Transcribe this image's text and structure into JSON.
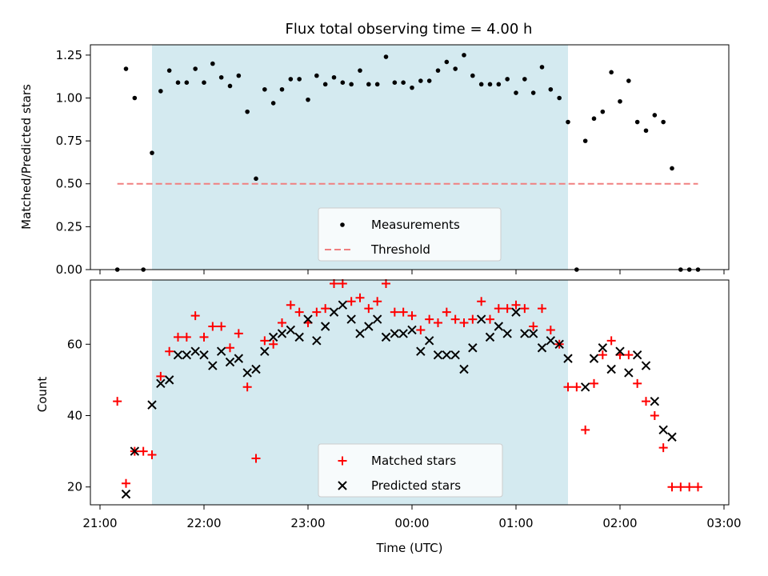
{
  "chart_data": [
    {
      "type": "scatter",
      "title": "Flux total observing time = 4.00 h",
      "xlabel": "",
      "ylabel": "Matched/Predicted stars",
      "ylim": [
        0,
        1.31
      ],
      "yticks": [
        "0.00",
        "0.25",
        "0.50",
        "0.75",
        "1.00",
        "1.25"
      ],
      "highlight_span": {
        "from": "21:30",
        "to": "01:30",
        "color": "#d4eaf0"
      },
      "threshold": {
        "name": "Threshold",
        "value": 0.5,
        "from": "21:10",
        "to": "02:45",
        "color": "#f08080"
      },
      "legend": {
        "placement": "lower center"
      },
      "series": [
        {
          "name": "Measurements",
          "color": "#000000",
          "points": [
            [
              "21:10",
              0.0
            ],
            [
              "21:15",
              1.17
            ],
            [
              "21:20",
              1.0
            ],
            [
              "21:25",
              0.0
            ],
            [
              "21:30",
              0.68
            ],
            [
              "21:35",
              1.04
            ],
            [
              "21:40",
              1.16
            ],
            [
              "21:45",
              1.09
            ],
            [
              "21:50",
              1.09
            ],
            [
              "21:55",
              1.17
            ],
            [
              "22:00",
              1.09
            ],
            [
              "22:05",
              1.2
            ],
            [
              "22:10",
              1.12
            ],
            [
              "22:15",
              1.07
            ],
            [
              "22:20",
              1.13
            ],
            [
              "22:25",
              0.92
            ],
            [
              "22:30",
              0.53
            ],
            [
              "22:35",
              1.05
            ],
            [
              "22:40",
              0.97
            ],
            [
              "22:45",
              1.05
            ],
            [
              "22:50",
              1.11
            ],
            [
              "22:55",
              1.11
            ],
            [
              "23:00",
              0.99
            ],
            [
              "23:05",
              1.13
            ],
            [
              "23:10",
              1.08
            ],
            [
              "23:15",
              1.12
            ],
            [
              "23:20",
              1.09
            ],
            [
              "23:25",
              1.08
            ],
            [
              "23:30",
              1.16
            ],
            [
              "23:35",
              1.08
            ],
            [
              "23:40",
              1.08
            ],
            [
              "23:45",
              1.24
            ],
            [
              "23:50",
              1.09
            ],
            [
              "23:55",
              1.09
            ],
            [
              "00:00",
              1.06
            ],
            [
              "00:05",
              1.1
            ],
            [
              "00:10",
              1.1
            ],
            [
              "00:15",
              1.16
            ],
            [
              "00:20",
              1.21
            ],
            [
              "00:25",
              1.17
            ],
            [
              "00:30",
              1.25
            ],
            [
              "00:35",
              1.13
            ],
            [
              "00:40",
              1.08
            ],
            [
              "00:45",
              1.08
            ],
            [
              "00:50",
              1.08
            ],
            [
              "00:55",
              1.11
            ],
            [
              "01:00",
              1.03
            ],
            [
              "01:05",
              1.11
            ],
            [
              "01:10",
              1.03
            ],
            [
              "01:15",
              1.18
            ],
            [
              "01:20",
              1.05
            ],
            [
              "01:25",
              1.0
            ],
            [
              "01:30",
              0.86
            ],
            [
              "01:35",
              0.0
            ],
            [
              "01:40",
              0.75
            ],
            [
              "01:45",
              0.88
            ],
            [
              "01:50",
              0.92
            ],
            [
              "01:55",
              1.15
            ],
            [
              "02:00",
              0.98
            ],
            [
              "02:05",
              1.1
            ],
            [
              "02:10",
              0.86
            ],
            [
              "02:15",
              0.81
            ],
            [
              "02:20",
              0.9
            ],
            [
              "02:25",
              0.86
            ],
            [
              "02:30",
              0.59
            ],
            [
              "02:35",
              0.0
            ],
            [
              "02:40",
              0.0
            ],
            [
              "02:45",
              0.0
            ]
          ]
        }
      ]
    },
    {
      "type": "scatter",
      "title": "",
      "xlabel": "Time (UTC)",
      "ylabel": "Count",
      "ylim": [
        15,
        78
      ],
      "yticks": [
        "20",
        "40",
        "60"
      ],
      "xlim": [
        "20:55",
        "03:00"
      ],
      "xticks": [
        "21:00",
        "22:00",
        "23:00",
        "00:00",
        "01:00",
        "02:00",
        "03:00"
      ],
      "highlight_span": {
        "from": "21:30",
        "to": "01:30",
        "color": "#d4eaf0"
      },
      "legend": {
        "placement": "lower center"
      },
      "series": [
        {
          "name": "Matched stars",
          "marker": "plus",
          "color": "#ff0000",
          "points": [
            [
              "21:10",
              44
            ],
            [
              "21:15",
              21
            ],
            [
              "21:20",
              30
            ],
            [
              "21:25",
              30
            ],
            [
              "21:30",
              29
            ],
            [
              "21:35",
              51
            ],
            [
              "21:40",
              58
            ],
            [
              "21:45",
              62
            ],
            [
              "21:50",
              62
            ],
            [
              "21:55",
              68
            ],
            [
              "22:00",
              62
            ],
            [
              "22:05",
              65
            ],
            [
              "22:10",
              65
            ],
            [
              "22:15",
              59
            ],
            [
              "22:20",
              63
            ],
            [
              "22:25",
              48
            ],
            [
              "22:30",
              28
            ],
            [
              "22:35",
              61
            ],
            [
              "22:40",
              60
            ],
            [
              "22:45",
              66
            ],
            [
              "22:50",
              71
            ],
            [
              "22:55",
              69
            ],
            [
              "23:00",
              66
            ],
            [
              "23:05",
              69
            ],
            [
              "23:10",
              70
            ],
            [
              "23:15",
              77
            ],
            [
              "23:20",
              77
            ],
            [
              "23:25",
              72
            ],
            [
              "23:30",
              73
            ],
            [
              "23:35",
              70
            ],
            [
              "23:40",
              72
            ],
            [
              "23:45",
              77
            ],
            [
              "23:50",
              69
            ],
            [
              "23:55",
              69
            ],
            [
              "00:00",
              68
            ],
            [
              "00:05",
              64
            ],
            [
              "00:10",
              67
            ],
            [
              "00:15",
              66
            ],
            [
              "00:20",
              69
            ],
            [
              "00:25",
              67
            ],
            [
              "00:30",
              66
            ],
            [
              "00:35",
              67
            ],
            [
              "00:40",
              72
            ],
            [
              "00:45",
              67
            ],
            [
              "00:50",
              70
            ],
            [
              "00:55",
              70
            ],
            [
              "01:00",
              71
            ],
            [
              "01:05",
              70
            ],
            [
              "01:10",
              65
            ],
            [
              "01:15",
              70
            ],
            [
              "01:20",
              64
            ],
            [
              "01:25",
              60
            ],
            [
              "01:30",
              48
            ],
            [
              "01:35",
              48
            ],
            [
              "01:40",
              36
            ],
            [
              "01:45",
              49
            ],
            [
              "01:50",
              57
            ],
            [
              "01:55",
              61
            ],
            [
              "02:00",
              57
            ],
            [
              "02:05",
              57
            ],
            [
              "02:10",
              49
            ],
            [
              "02:15",
              44
            ],
            [
              "02:20",
              40
            ],
            [
              "02:25",
              31
            ],
            [
              "02:30",
              20
            ],
            [
              "02:35",
              20
            ],
            [
              "02:40",
              20
            ],
            [
              "02:45",
              20
            ]
          ]
        },
        {
          "name": "Predicted stars",
          "marker": "x",
          "color": "#000000",
          "points": [
            [
              "21:15",
              18
            ],
            [
              "21:20",
              30
            ],
            [
              "21:30",
              43
            ],
            [
              "21:35",
              49
            ],
            [
              "21:40",
              50
            ],
            [
              "21:45",
              57
            ],
            [
              "21:50",
              57
            ],
            [
              "21:55",
              58
            ],
            [
              "22:00",
              57
            ],
            [
              "22:05",
              54
            ],
            [
              "22:10",
              58
            ],
            [
              "22:15",
              55
            ],
            [
              "22:20",
              56
            ],
            [
              "22:25",
              52
            ],
            [
              "22:30",
              53
            ],
            [
              "22:35",
              58
            ],
            [
              "22:40",
              62
            ],
            [
              "22:45",
              63
            ],
            [
              "22:50",
              64
            ],
            [
              "22:55",
              62
            ],
            [
              "23:00",
              67
            ],
            [
              "23:05",
              61
            ],
            [
              "23:10",
              65
            ],
            [
              "23:15",
              69
            ],
            [
              "23:20",
              71
            ],
            [
              "23:25",
              67
            ],
            [
              "23:30",
              63
            ],
            [
              "23:35",
              65
            ],
            [
              "23:40",
              67
            ],
            [
              "23:45",
              62
            ],
            [
              "23:50",
              63
            ],
            [
              "23:55",
              63
            ],
            [
              "00:00",
              64
            ],
            [
              "00:05",
              58
            ],
            [
              "00:10",
              61
            ],
            [
              "00:15",
              57
            ],
            [
              "00:20",
              57
            ],
            [
              "00:25",
              57
            ],
            [
              "00:30",
              53
            ],
            [
              "00:35",
              59
            ],
            [
              "00:40",
              67
            ],
            [
              "00:45",
              62
            ],
            [
              "00:50",
              65
            ],
            [
              "00:55",
              63
            ],
            [
              "01:00",
              69
            ],
            [
              "01:05",
              63
            ],
            [
              "01:10",
              63
            ],
            [
              "01:15",
              59
            ],
            [
              "01:20",
              61
            ],
            [
              "01:25",
              60
            ],
            [
              "01:30",
              56
            ],
            [
              "01:40",
              48
            ],
            [
              "01:45",
              56
            ],
            [
              "01:50",
              59
            ],
            [
              "01:55",
              53
            ],
            [
              "02:00",
              58
            ],
            [
              "02:05",
              52
            ],
            [
              "02:10",
              57
            ],
            [
              "02:15",
              54
            ],
            [
              "02:20",
              44
            ],
            [
              "02:25",
              36
            ],
            [
              "02:30",
              34
            ]
          ]
        }
      ]
    }
  ]
}
